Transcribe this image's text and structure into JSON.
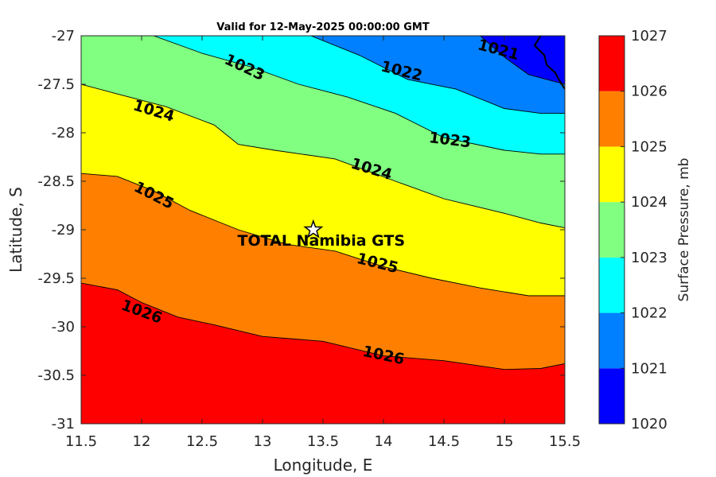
{
  "chart_data": {
    "type": "contour",
    "title": "Valid for 12-May-2025 00:00:00 GMT",
    "xlabel": "Longitude, E",
    "ylabel": "Latitude, S",
    "xlim": [
      11.5,
      15.5
    ],
    "ylim": [
      -31,
      -27
    ],
    "xticks": [
      "11.5",
      "12",
      "12.5",
      "13",
      "13.5",
      "14",
      "14.5",
      "15",
      "15.5"
    ],
    "yticks": [
      "-27",
      "-27.5",
      "-28",
      "-28.5",
      "-29",
      "-29.5",
      "-30",
      "-30.5",
      "-31"
    ],
    "colorbar": {
      "title": "Surface Pressure, mb",
      "ticks": [
        "1027",
        "1026",
        "1025",
        "1024",
        "1023",
        "1022",
        "1021",
        "1020"
      ],
      "levels": [
        1020,
        1021,
        1022,
        1023,
        1024,
        1025,
        1026,
        1027
      ],
      "colors": [
        "#0000ff",
        "#0080ff",
        "#00ffff",
        "#80ff80",
        "#ffff00",
        "#ff8000",
        "#ff0000",
        "#800000"
      ]
    },
    "contours": [
      {
        "level": 1026,
        "label": "1026",
        "points": [
          [
            11.5,
            -29.55
          ],
          [
            11.8,
            -29.62
          ],
          [
            12.0,
            -29.75
          ],
          [
            12.3,
            -29.9
          ],
          [
            12.6,
            -29.98
          ],
          [
            13.0,
            -30.1
          ],
          [
            13.5,
            -30.15
          ],
          [
            14.0,
            -30.3
          ],
          [
            14.5,
            -30.35
          ],
          [
            15.0,
            -30.44
          ],
          [
            15.3,
            -30.43
          ],
          [
            15.5,
            -30.38
          ]
        ]
      },
      {
        "level": 1025,
        "label": "1025",
        "points": [
          [
            11.5,
            -28.42
          ],
          [
            11.8,
            -28.45
          ],
          [
            12.1,
            -28.6
          ],
          [
            12.4,
            -28.8
          ],
          [
            12.8,
            -29.0
          ],
          [
            13.2,
            -29.15
          ],
          [
            13.6,
            -29.22
          ],
          [
            14.0,
            -29.38
          ],
          [
            14.4,
            -29.5
          ],
          [
            14.8,
            -29.6
          ],
          [
            15.2,
            -29.68
          ],
          [
            15.5,
            -29.68
          ]
        ]
      },
      {
        "level": 1024,
        "label": "1024",
        "points": [
          [
            11.5,
            -27.5
          ],
          [
            11.8,
            -27.6
          ],
          [
            12.2,
            -27.73
          ],
          [
            12.6,
            -27.92
          ],
          [
            12.8,
            -28.12
          ],
          [
            13.1,
            -28.18
          ],
          [
            13.6,
            -28.27
          ],
          [
            14.1,
            -28.5
          ],
          [
            14.5,
            -28.68
          ],
          [
            15.0,
            -28.83
          ],
          [
            15.3,
            -28.93
          ],
          [
            15.5,
            -28.98
          ]
        ]
      },
      {
        "level": 1023,
        "label": "1023",
        "points": [
          [
            12.1,
            -27.0
          ],
          [
            12.5,
            -27.18
          ],
          [
            12.9,
            -27.32
          ],
          [
            13.3,
            -27.5
          ],
          [
            13.7,
            -27.63
          ],
          [
            14.1,
            -27.8
          ],
          [
            14.5,
            -28.05
          ],
          [
            15.0,
            -28.18
          ],
          [
            15.3,
            -28.22
          ],
          [
            15.5,
            -28.22
          ]
        ]
      },
      {
        "level": 1022,
        "label": "1022",
        "points": [
          [
            13.4,
            -27.0
          ],
          [
            13.8,
            -27.2
          ],
          [
            14.2,
            -27.45
          ],
          [
            14.6,
            -27.55
          ],
          [
            15.0,
            -27.75
          ],
          [
            15.3,
            -27.8
          ],
          [
            15.5,
            -27.8
          ]
        ]
      },
      {
        "level": 1021,
        "label": "1021",
        "points": [
          [
            14.8,
            -27.0
          ],
          [
            15.0,
            -27.22
          ],
          [
            15.2,
            -27.4
          ],
          [
            15.5,
            -27.5
          ]
        ]
      }
    ],
    "contour_labels": [
      {
        "text": "1026",
        "lon": 12.0,
        "lat": -29.85,
        "angle": 20
      },
      {
        "text": "1026",
        "lon": 14.0,
        "lat": -30.3,
        "angle": 12
      },
      {
        "text": "1025",
        "lon": 12.1,
        "lat": -28.65,
        "angle": 27
      },
      {
        "text": "1025",
        "lon": 13.95,
        "lat": -29.35,
        "angle": 14
      },
      {
        "text": "1024",
        "lon": 12.1,
        "lat": -27.78,
        "angle": 17
      },
      {
        "text": "1024",
        "lon": 13.9,
        "lat": -28.38,
        "angle": 17
      },
      {
        "text": "1023",
        "lon": 12.85,
        "lat": -27.33,
        "angle": 25
      },
      {
        "text": "1023",
        "lon": 14.55,
        "lat": -28.08,
        "angle": 7
      },
      {
        "text": "1022",
        "lon": 14.15,
        "lat": -27.37,
        "angle": 14
      },
      {
        "text": "1021",
        "lon": 14.95,
        "lat": -27.15,
        "angle": 15
      }
    ],
    "coastline": [
      [
        15.3,
        -27.0
      ],
      [
        15.25,
        -27.1
      ],
      [
        15.33,
        -27.2
      ],
      [
        15.35,
        -27.3
      ],
      [
        15.42,
        -27.38
      ],
      [
        15.45,
        -27.45
      ],
      [
        15.5,
        -27.55
      ]
    ],
    "station": {
      "name": "TOTAL Namibia GTS",
      "lon": 13.42,
      "lat": -29.0,
      "marker": "star-icon"
    }
  }
}
